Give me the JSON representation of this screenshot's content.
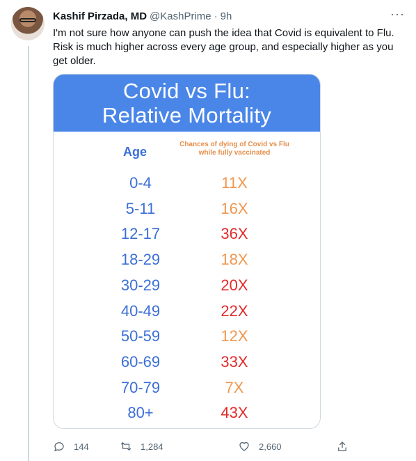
{
  "tweet": {
    "author_name": "Kashif Pirzada, MD",
    "handle": "@KashPrime",
    "separator": "·",
    "time": "9h",
    "more_icon": "···",
    "text": "I'm not sure how anyone can push the idea that Covid is equivalent to Flu. Risk is much higher across every age group, and especially higher as you get older."
  },
  "card": {
    "title_line1": "Covid vs Flu:",
    "title_line2": "Relative Mortality",
    "age_header": "Age",
    "chance_header": "Chances of dying of Covid vs Flu while fully vaccinated",
    "rows": [
      {
        "age": "0-4",
        "ratio": "11X",
        "color": "#f0974f"
      },
      {
        "age": "5-11",
        "ratio": "16X",
        "color": "#f0974f"
      },
      {
        "age": "12-17",
        "ratio": "36X",
        "color": "#e22b2b"
      },
      {
        "age": "18-29",
        "ratio": "18X",
        "color": "#f0974f"
      },
      {
        "age": "30-29",
        "ratio": "20X",
        "color": "#e22b2b"
      },
      {
        "age": "40-49",
        "ratio": "22X",
        "color": "#e22b2b"
      },
      {
        "age": "50-59",
        "ratio": "12X",
        "color": "#f0974f"
      },
      {
        "age": "60-69",
        "ratio": "33X",
        "color": "#e22b2b"
      },
      {
        "age": "70-79",
        "ratio": "7X",
        "color": "#f0974f"
      },
      {
        "age": "80+",
        "ratio": "43X",
        "color": "#e22b2b"
      }
    ]
  },
  "actions": {
    "replies": "144",
    "retweets": "1,284",
    "likes": "2,660"
  },
  "colors": {
    "header_blue": "#4a86e8",
    "age_blue": "#3b6fd6",
    "orange": "#f0974f",
    "red": "#e22b2b"
  }
}
